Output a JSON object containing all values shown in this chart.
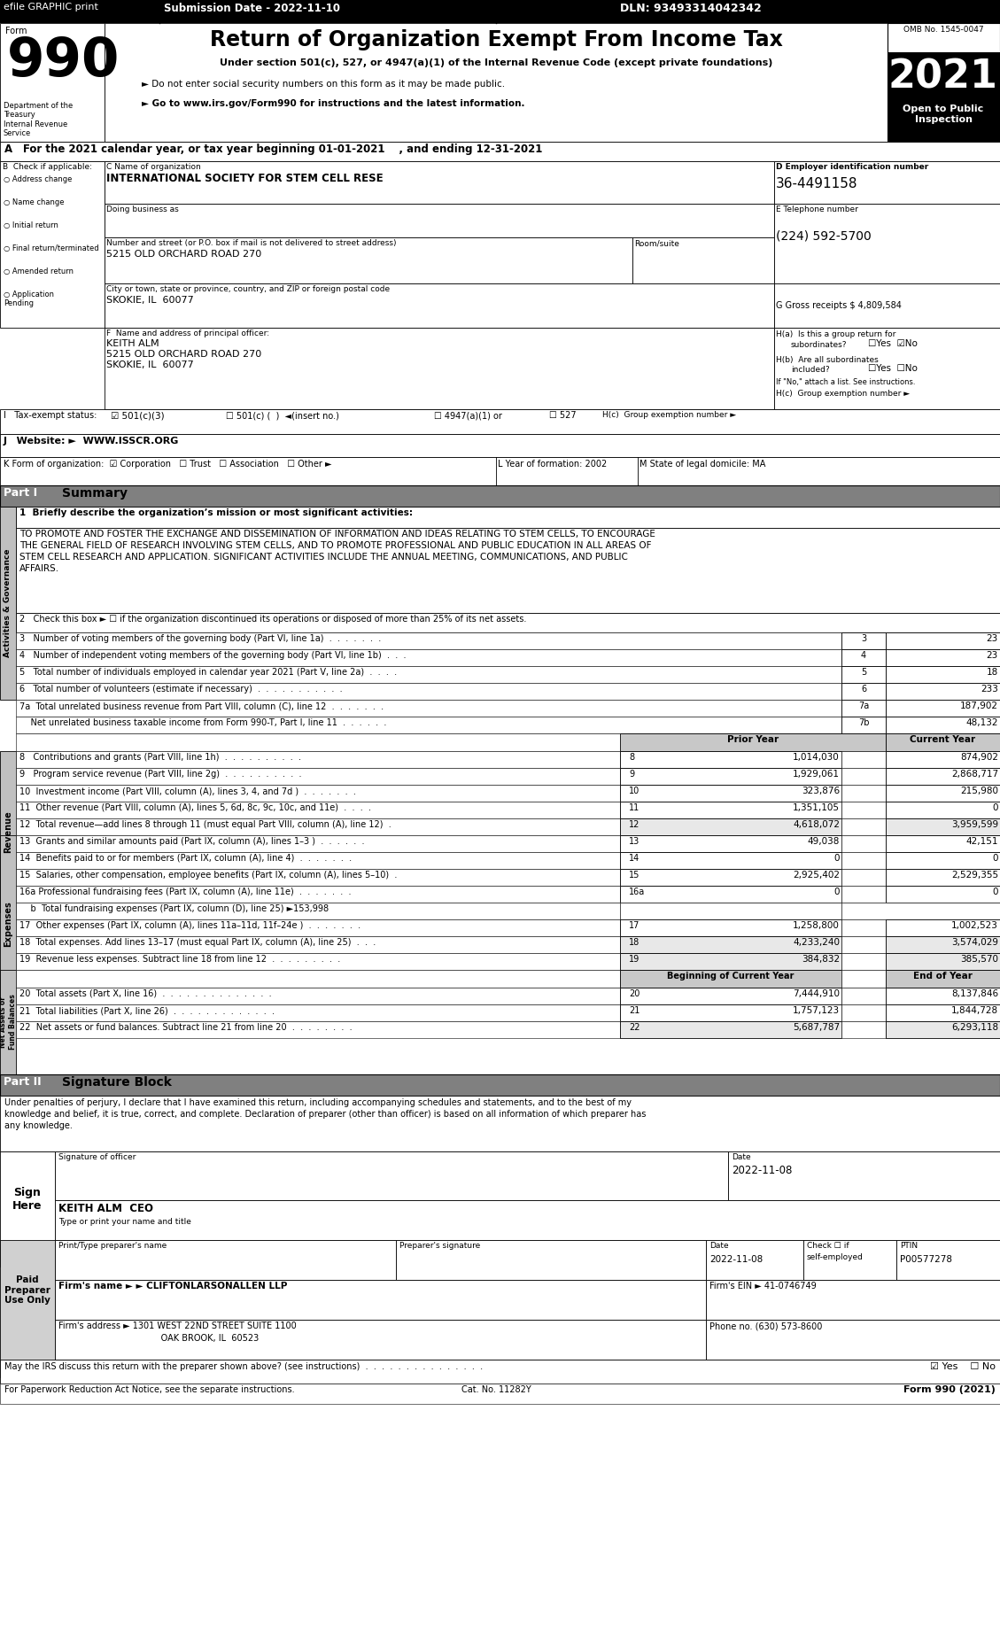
{
  "title_header": "Return of Organization Exempt From Income Tax",
  "form_number": "990",
  "year": "2021",
  "omb": "OMB No. 1545-0047",
  "open_to_public": "Open to Public\nInspection",
  "efile_text": "efile GRAPHIC print",
  "submission_date": "Submission Date - 2022-11-10",
  "dln": "DLN: 93493314042342",
  "under_section": "Under section 501(c), 527, or 4947(a)(1) of the Internal Revenue Code (except private foundations)",
  "do_not_enter": "► Do not enter social security numbers on this form as it may be made public.",
  "go_to": "► Go to www.irs.gov/Form990 for instructions and the latest information.",
  "tax_year_line": "A For the 2021 calendar year, or tax year beginning 01-01-2021  , and ending 12-31-2021",
  "dept": "Department of the\nTreasury\nInternal Revenue\nService",
  "check_applicable": "B Check if applicable:",
  "checkboxes_b": [
    "Address change",
    "Name change",
    "Initial return",
    "Final return/terminated",
    "Amended return",
    "Application\nPending"
  ],
  "org_name_label": "C Name of organization",
  "org_name": "INTERNATIONAL SOCIETY FOR STEM CELL RESE",
  "doing_business": "Doing business as",
  "address_label": "Number and street (or P.O. box if mail is not delivered to street address)",
  "address": "5215 OLD ORCHARD ROAD 270",
  "room_suite": "Room/suite",
  "city_label": "City or town, state or province, country, and ZIP or foreign postal code",
  "city": "SKOKIE, IL  60077",
  "ein_label": "D Employer identification number",
  "ein": "36-4491158",
  "phone_label": "E Telephone number",
  "phone": "(224) 592-5700",
  "gross_receipts": "G Gross receipts $ 4,809,584",
  "principal_officer_label": "F  Name and address of principal officer:",
  "principal_officer_name": "KEITH ALM",
  "principal_officer_addr": "5215 OLD ORCHARD ROAD 270",
  "principal_officer_city": "SKOKIE, IL  60077",
  "ha_q": "H(a)  Is this a group return for",
  "ha_q2": "subordinates?",
  "ha_yes": "☐Yes",
  "ha_no": "☑No",
  "hb_q": "H(b)  Are all subordinates",
  "hb_q2": "included?",
  "hb_yes": "☐Yes",
  "hb_no": "☐No",
  "hb_note": "If \"No,\" attach a list. See instructions.",
  "hc_label": "H(c)  Group exemption number ►",
  "tax_exempt_label": "I   Tax-exempt status:",
  "website_label": "J   Website: ►  WWW.ISSCR.ORG",
  "form_org_label": "K Form of organization:",
  "year_formation_label": "L Year of formation: 2002",
  "state_domicile_label": "M State of legal domicile: MA",
  "part1_label": "Part I",
  "part1_title": "Summary",
  "mission_label": "1  Briefly describe the organization’s mission or most significant activities:",
  "mission_text1": "TO PROMOTE AND FOSTER THE EXCHANGE AND DISSEMINATION OF INFORMATION AND IDEAS RELATING TO STEM CELLS, TO ENCOURAGE",
  "mission_text2": "THE GENERAL FIELD OF RESEARCH INVOLVING STEM CELLS, AND TO PROMOTE PROFESSIONAL AND PUBLIC EDUCATION IN ALL AREAS OF",
  "mission_text3": "STEM CELL RESEARCH AND APPLICATION. SIGNIFICANT ACTIVITIES INCLUDE THE ANNUAL MEETING, COMMUNICATIONS, AND PUBLIC",
  "mission_text4": "AFFAIRS.",
  "line2": "2   Check this box ► ☐ if the organization discontinued its operations or disposed of more than 25% of its net assets.",
  "line3_label": "3   Number of voting members of the governing body (Part VI, line 1a)  .  .  .  .  .  .  .",
  "line3_num": "3",
  "line3_val": "23",
  "line4_label": "4   Number of independent voting members of the governing body (Part VI, line 1b)  .  .  .",
  "line4_num": "4",
  "line4_val": "23",
  "line5_label": "5   Total number of individuals employed in calendar year 2021 (Part V, line 2a)  .  .  .  .",
  "line5_num": "5",
  "line5_val": "18",
  "line6_label": "6   Total number of volunteers (estimate if necessary)  .  .  .  .  .  .  .  .  .  .  .",
  "line6_num": "6",
  "line6_val": "233",
  "line7a_label": "7a  Total unrelated business revenue from Part VIII, column (C), line 12  .  .  .  .  .  .  .",
  "line7a_num": "7a",
  "line7a_val": "187,902",
  "line7b_label": "    Net unrelated business taxable income from Form 990-T, Part I, line 11  .  .  .  .  .  .",
  "line7b_num": "7b",
  "line7b_val": "48,132",
  "prior_year_label": "Prior Year",
  "current_year_label": "Current Year",
  "line8_label": "8   Contributions and grants (Part VIII, line 1h)  .  .  .  .  .  .  .  .  .  .",
  "line8_num": "8",
  "line8_prior": "1,014,030",
  "line8_current": "874,902",
  "line9_label": "9   Program service revenue (Part VIII, line 2g)  .  .  .  .  .  .  .  .  .  .",
  "line9_num": "9",
  "line9_prior": "1,929,061",
  "line9_current": "2,868,717",
  "line10_label": "10  Investment income (Part VIII, column (A), lines 3, 4, and 7d )  .  .  .  .  .  .  .",
  "line10_num": "10",
  "line10_prior": "323,876",
  "line10_current": "215,980",
  "line11_label": "11  Other revenue (Part VIII, column (A), lines 5, 6d, 8c, 9c, 10c, and 11e)  .  .  .  .",
  "line11_num": "11",
  "line11_prior": "1,351,105",
  "line11_current": "0",
  "line12_label": "12  Total revenue—add lines 8 through 11 (must equal Part VIII, column (A), line 12)  .",
  "line12_num": "12",
  "line12_prior": "4,618,072",
  "line12_current": "3,959,599",
  "line13_label": "13  Grants and similar amounts paid (Part IX, column (A), lines 1–3 )  .  .  .  .  .  .",
  "line13_num": "13",
  "line13_prior": "49,038",
  "line13_current": "42,151",
  "line14_label": "14  Benefits paid to or for members (Part IX, column (A), line 4)  .  .  .  .  .  .  .",
  "line14_num": "14",
  "line14_prior": "0",
  "line14_current": "0",
  "line15_label": "15  Salaries, other compensation, employee benefits (Part IX, column (A), lines 5–10)  .",
  "line15_num": "15",
  "line15_prior": "2,925,402",
  "line15_current": "2,529,355",
  "line16a_label": "16a Professional fundraising fees (Part IX, column (A), line 11e)  .  .  .  .  .  .  .",
  "line16a_num": "16a",
  "line16a_prior": "0",
  "line16a_current": "0",
  "line16b_label": "    b  Total fundraising expenses (Part IX, column (D), line 25) ►153,998",
  "line17_label": "17  Other expenses (Part IX, column (A), lines 11a–11d, 11f–24e )  .  .  .  .  .  .  .",
  "line17_num": "17",
  "line17_prior": "1,258,800",
  "line17_current": "1,002,523",
  "line18_label": "18  Total expenses. Add lines 13–17 (must equal Part IX, column (A), line 25)  .  .  .",
  "line18_num": "18",
  "line18_prior": "4,233,240",
  "line18_current": "3,574,029",
  "line19_label": "19  Revenue less expenses. Subtract line 18 from line 12  .  .  .  .  .  .  .  .  .",
  "line19_num": "19",
  "line19_prior": "384,832",
  "line19_current": "385,570",
  "beg_year_label": "Beginning of Current Year",
  "end_year_label": "End of Year",
  "line20_label": "20  Total assets (Part X, line 16)  .  .  .  .  .  .  .  .  .  .  .  .  .  .",
  "line20_num": "20",
  "line20_prior": "7,444,910",
  "line20_current": "8,137,846",
  "line21_label": "21  Total liabilities (Part X, line 26)  .  .  .  .  .  .  .  .  .  .  .  .  .",
  "line21_num": "21",
  "line21_prior": "1,757,123",
  "line21_current": "1,844,728",
  "line22_label": "22  Net assets or fund balances. Subtract line 21 from line 20  .  .  .  .  .  .  .  .",
  "line22_num": "22",
  "line22_prior": "5,687,787",
  "line22_current": "6,293,118",
  "part2_label": "Part II",
  "part2_title": "Signature Block",
  "sig_declaration1": "Under penalties of perjury, I declare that I have examined this return, including accompanying schedules and statements, and to the best of my",
  "sig_declaration2": "knowledge and belief, it is true, correct, and complete. Declaration of preparer (other than officer) is based on all information of which preparer has",
  "sig_declaration3": "any knowledge.",
  "sig_date": "2022-11-08",
  "sig_name": "KEITH ALM  CEO",
  "sig_title": "Type or print your name and title",
  "paid_preparer": "Paid\nPreparer\nUse Only",
  "preparer_name_label": "Print/Type preparer's name",
  "preparer_sig_label": "Preparer's signature",
  "preparer_date_label": "Date",
  "preparer_ptin_label": "PTIN",
  "preparer_ptin": "P00577278",
  "firm_name_label": "Firm's name ►",
  "firm_name": "CLIFTONLARSONALLEN LLP",
  "firm_ein_label": "Firm's EIN ►",
  "firm_ein": "41-0746749",
  "firm_address_label": "Firm's address ►",
  "firm_address": "1301 WEST 22ND STREET SUITE 1100",
  "firm_city": "OAK BROOK, IL  60523",
  "firm_phone_label": "Phone no.",
  "firm_phone": "(630) 573-8600",
  "discuss_label": "May the IRS discuss this return with the preparer shown above? (see instructions)  .  .  .  .  .  .  .  .  .  .  .  .  .  .  .",
  "footer_left": "For Paperwork Reduction Act Notice, see the separate instructions.",
  "footer_cat": "Cat. No. 11282Y",
  "footer_right": "Form 990 (2021)",
  "preparer_date_val": "2022-11-08"
}
